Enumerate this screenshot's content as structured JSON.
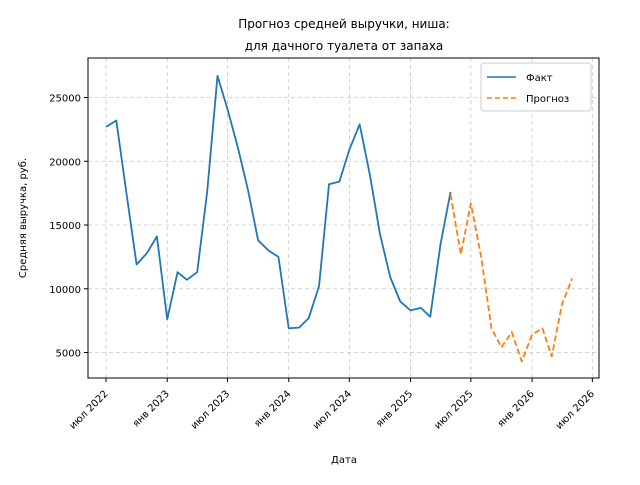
{
  "chart_data": {
    "type": "line",
    "title_lines": [
      "Прогноз средней выручки, ниша:",
      "для дачного туалета от запаха"
    ],
    "xlabel": "Дата",
    "ylabel": "Средняя выручка, руб.",
    "x_ticks": [
      {
        "date": "2022-07-01",
        "label": "июл 2022"
      },
      {
        "date": "2023-01-01",
        "label": "янв 2023"
      },
      {
        "date": "2023-07-01",
        "label": "июл 2023"
      },
      {
        "date": "2024-01-01",
        "label": "янв 2024"
      },
      {
        "date": "2024-07-01",
        "label": "июл 2024"
      },
      {
        "date": "2025-01-01",
        "label": "янв 2025"
      },
      {
        "date": "2025-07-01",
        "label": "июл 2025"
      },
      {
        "date": "2026-01-01",
        "label": "янв 2026"
      },
      {
        "date": "2026-07-01",
        "label": "июл 2026"
      }
    ],
    "xlim": [
      "2022-05-08",
      "2026-07-21"
    ],
    "y_ticks": [
      5000,
      10000,
      15000,
      20000,
      25000
    ],
    "ylim": [
      3000,
      28100
    ],
    "grid": true,
    "legend_position": "top-right",
    "series": [
      {
        "name": "Факт",
        "style": "solid",
        "color": "#1f77b4",
        "x": [
          "2022-07-01",
          "2022-08-01",
          "2022-09-01",
          "2022-10-01",
          "2022-11-01",
          "2022-12-01",
          "2023-01-01",
          "2023-02-01",
          "2023-03-01",
          "2023-04-01",
          "2023-05-01",
          "2023-06-01",
          "2023-07-01",
          "2023-08-01",
          "2023-09-01",
          "2023-10-01",
          "2023-11-01",
          "2023-12-01",
          "2024-01-01",
          "2024-02-01",
          "2024-03-01",
          "2024-04-01",
          "2024-05-01",
          "2024-06-01",
          "2024-07-01",
          "2024-08-01",
          "2024-09-01",
          "2024-10-01",
          "2024-11-01",
          "2024-12-01",
          "2025-01-01",
          "2025-02-01",
          "2025-03-01",
          "2025-04-01",
          "2025-05-01"
        ],
        "y": [
          22700,
          23200,
          17400,
          11900,
          12800,
          14100,
          7600,
          11300,
          10700,
          11300,
          17600,
          26700,
          24100,
          21100,
          17700,
          13800,
          13000,
          12500,
          6900,
          6950,
          7700,
          10200,
          18200,
          18400,
          20900,
          22900,
          18900,
          14300,
          10900,
          9000,
          8300,
          8500,
          7800,
          13500,
          17600
        ]
      },
      {
        "name": "Прогноз",
        "style": "dashed",
        "color": "#ff7f0e",
        "x": [
          "2025-05-01",
          "2025-06-01",
          "2025-07-01",
          "2025-08-01",
          "2025-09-01",
          "2025-10-01",
          "2025-11-01",
          "2025-12-01",
          "2026-01-01",
          "2026-02-01",
          "2026-03-01",
          "2026-04-01",
          "2026-05-01"
        ],
        "y": [
          17400,
          12700,
          16700,
          12500,
          6900,
          5400,
          6600,
          4300,
          6400,
          6900,
          4700,
          8800,
          10800
        ]
      }
    ]
  }
}
